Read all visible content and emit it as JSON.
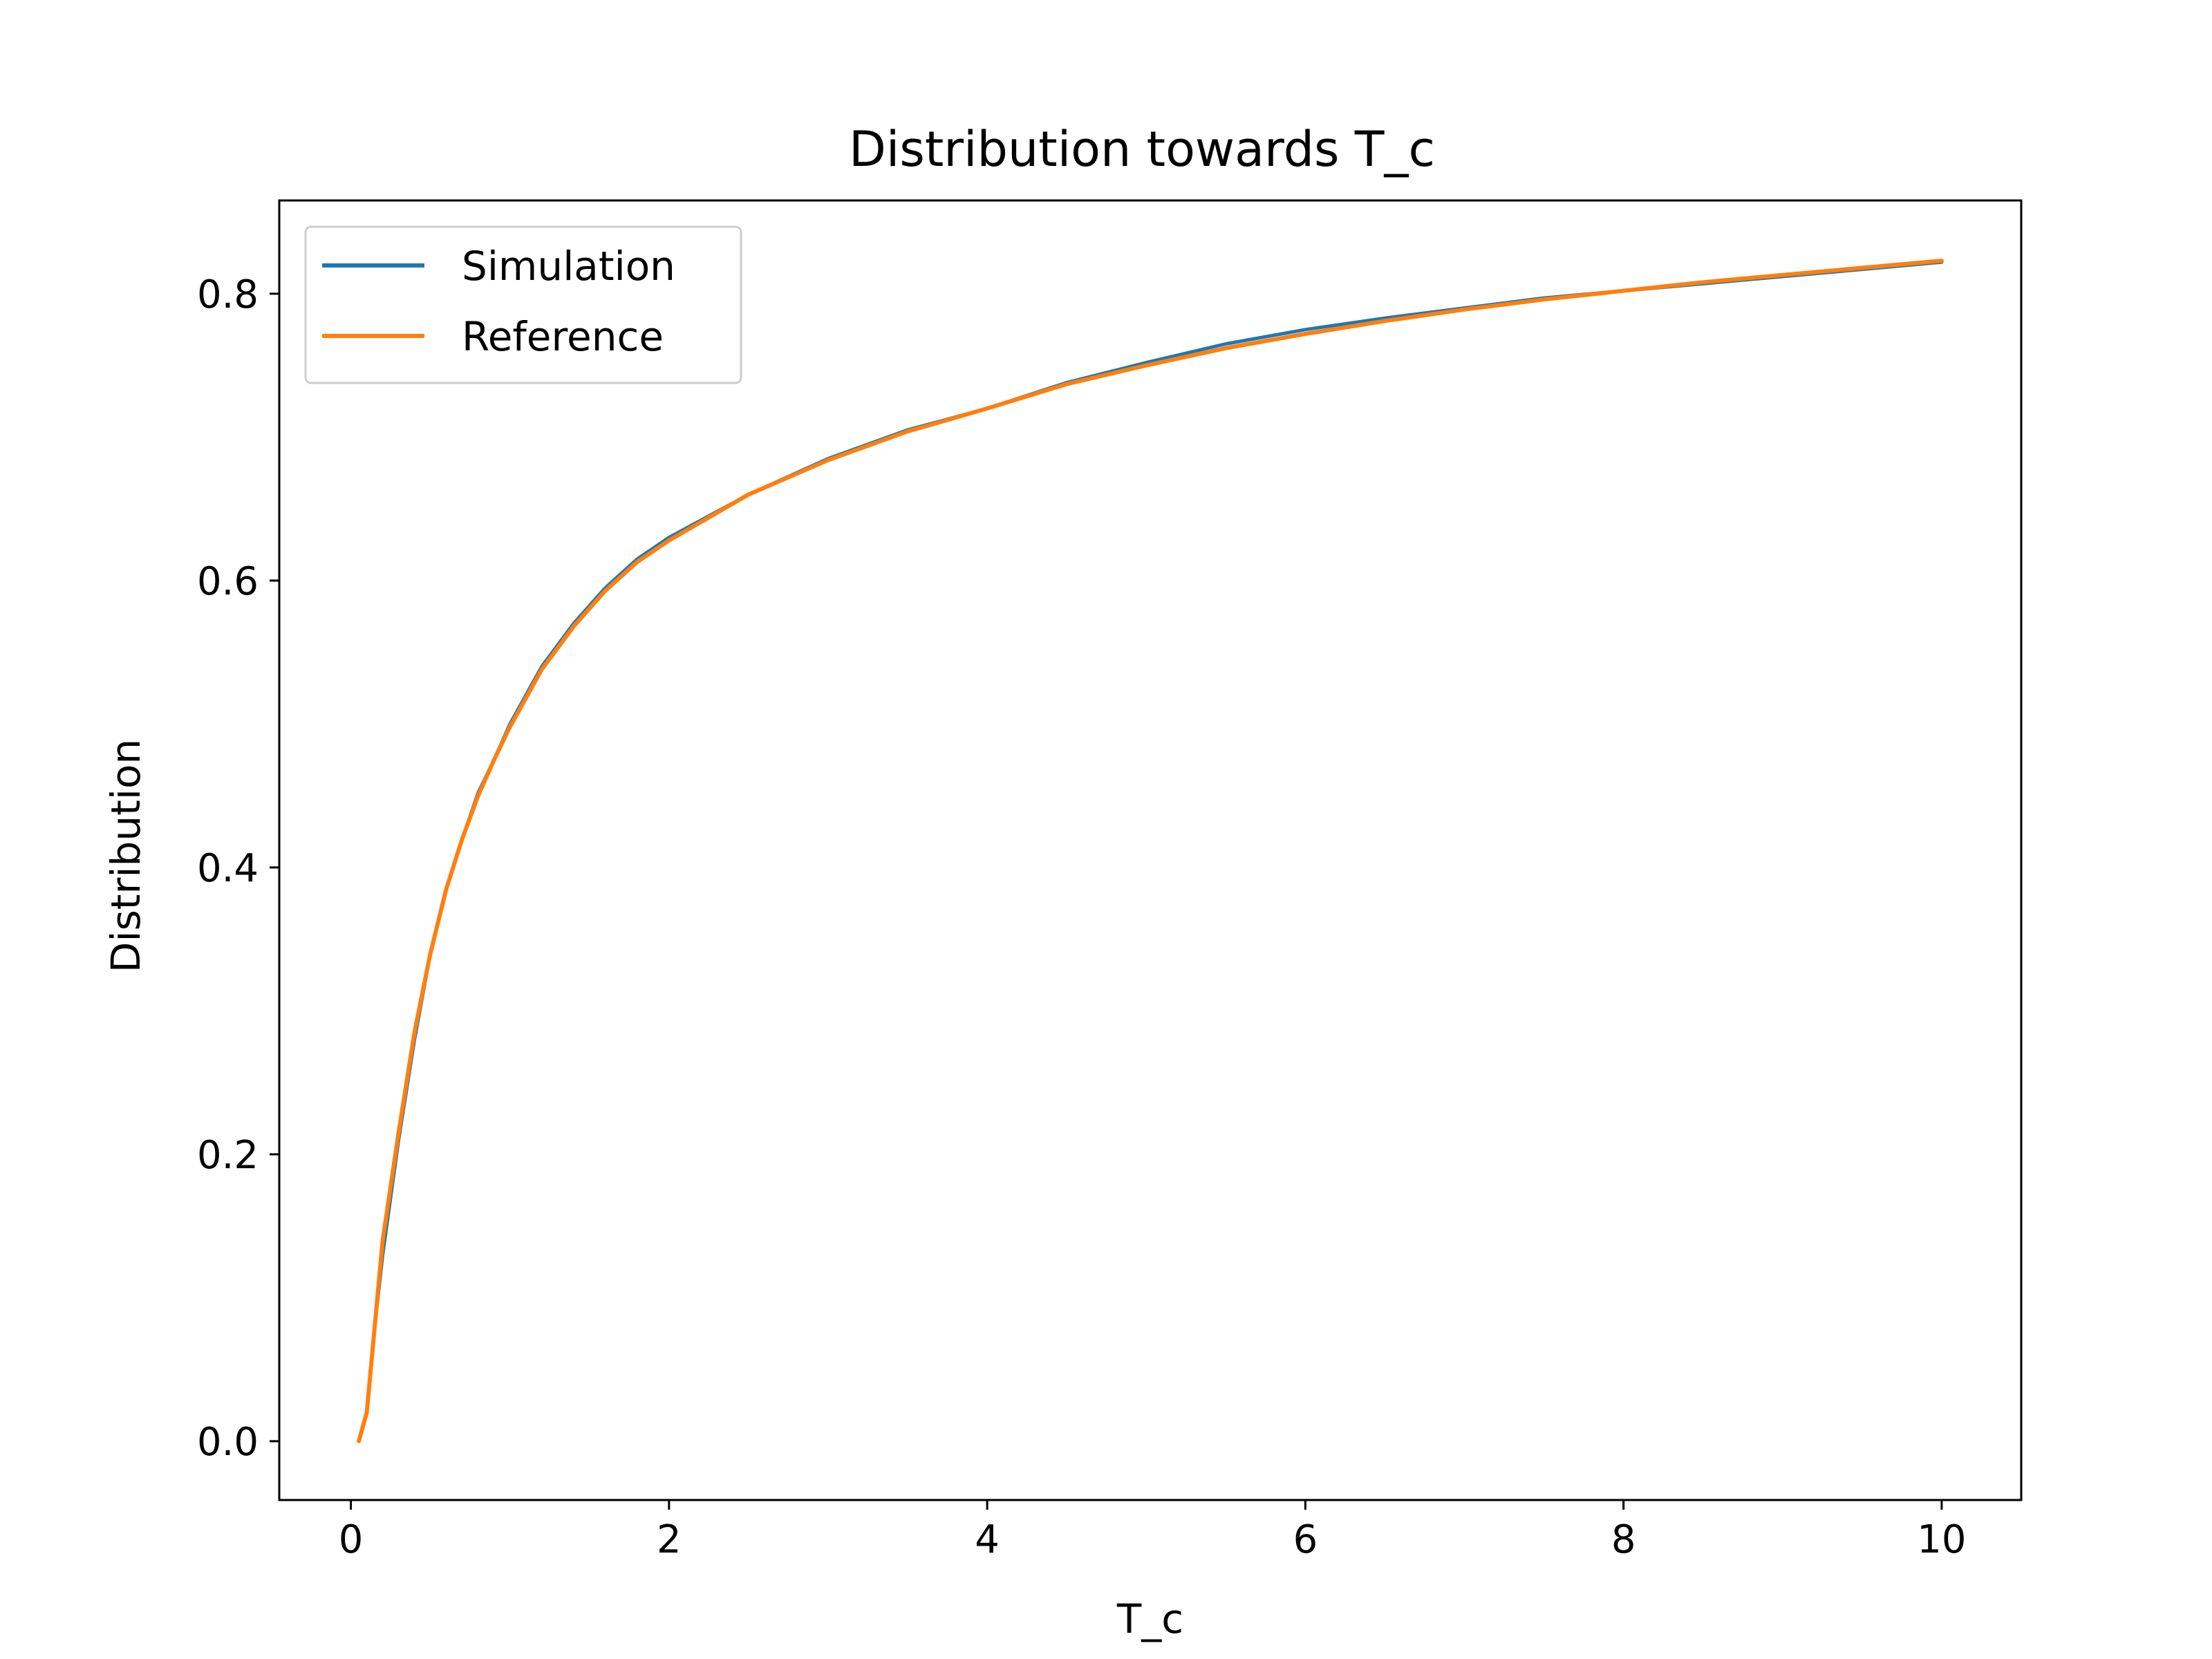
{
  "chart_data": {
    "type": "line",
    "title": "Distribution towards T_c",
    "xlabel": "T_c",
    "ylabel": "Distribution",
    "xlim": [
      -0.45,
      10.5
    ],
    "ylim": [
      -0.041,
      0.865
    ],
    "x_ticks": [
      0,
      2,
      4,
      6,
      8,
      10
    ],
    "x_tick_labels": [
      "0",
      "2",
      "4",
      "6",
      "8",
      "10"
    ],
    "y_ticks": [
      0.0,
      0.2,
      0.4,
      0.6,
      0.8
    ],
    "y_tick_labels": [
      "0.0",
      "0.2",
      "0.4",
      "0.6",
      "0.8"
    ],
    "grid": false,
    "legend_position": "upper-left",
    "series": [
      {
        "name": "Simulation",
        "color": "#1f77b4",
        "x": [
          0.05,
          0.1,
          0.15,
          0.2,
          0.3,
          0.4,
          0.5,
          0.6,
          0.7,
          0.8,
          0.9,
          1.0,
          1.2,
          1.4,
          1.6,
          1.8,
          2.0,
          2.5,
          3.0,
          3.5,
          4.0,
          4.5,
          5.0,
          5.5,
          6.0,
          6.5,
          7.0,
          7.5,
          8.0,
          8.5,
          9.0,
          9.5,
          10.0
        ],
        "y": [
          0.0,
          0.02,
          0.08,
          0.13,
          0.21,
          0.28,
          0.34,
          0.385,
          0.42,
          0.452,
          0.475,
          0.5,
          0.54,
          0.57,
          0.595,
          0.615,
          0.63,
          0.66,
          0.685,
          0.705,
          0.72,
          0.738,
          0.752,
          0.765,
          0.775,
          0.783,
          0.79,
          0.797,
          0.802,
          0.807,
          0.812,
          0.817,
          0.822
        ]
      },
      {
        "name": "Reference",
        "color": "#ff7f0e",
        "x": [
          0.05,
          0.1,
          0.15,
          0.2,
          0.3,
          0.4,
          0.5,
          0.6,
          0.7,
          0.8,
          0.9,
          1.0,
          1.2,
          1.4,
          1.6,
          1.8,
          2.0,
          2.5,
          3.0,
          3.5,
          4.0,
          4.5,
          5.0,
          5.5,
          6.0,
          6.5,
          7.0,
          7.5,
          8.0,
          8.5,
          9.0,
          9.5,
          10.0
        ],
        "y": [
          0.0,
          0.02,
          0.08,
          0.14,
          0.215,
          0.285,
          0.34,
          0.385,
          0.42,
          0.45,
          0.475,
          0.498,
          0.538,
          0.568,
          0.593,
          0.613,
          0.628,
          0.66,
          0.684,
          0.704,
          0.72,
          0.737,
          0.75,
          0.762,
          0.772,
          0.781,
          0.789,
          0.796,
          0.802,
          0.808,
          0.813,
          0.818,
          0.823
        ]
      }
    ]
  }
}
